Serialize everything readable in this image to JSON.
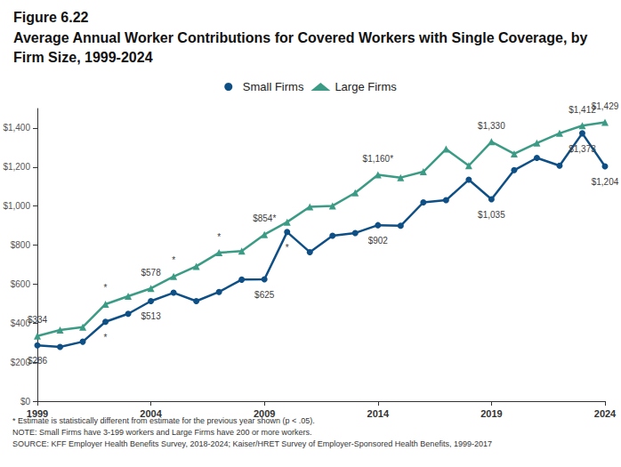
{
  "chart_data": {
    "type": "line",
    "title": "Figure 6.22",
    "subtitle": "Average Annual Worker Contributions for Covered Workers with Single Coverage, by Firm Size, 1999-2024",
    "x": [
      1999,
      2000,
      2001,
      2002,
      2003,
      2004,
      2005,
      2006,
      2007,
      2008,
      2009,
      2010,
      2011,
      2012,
      2013,
      2014,
      2015,
      2016,
      2017,
      2018,
      2019,
      2020,
      2021,
      2022,
      2023,
      2024
    ],
    "series": [
      {
        "name": "Small Firms",
        "color": "#0e4f86",
        "marker": "circle",
        "values": [
          286,
          278,
          305,
          407,
          448,
          513,
          556,
          513,
          560,
          623,
          625,
          867,
          764,
          848,
          862,
          902,
          899,
          1019,
          1030,
          1135,
          1035,
          1184,
          1247,
          1207,
          1373,
          1204
        ],
        "value_labels": [
          "$286",
          null,
          null,
          "*",
          null,
          "$513",
          null,
          null,
          null,
          null,
          "$625",
          "*",
          null,
          null,
          null,
          "$902",
          null,
          null,
          null,
          null,
          "$1,035",
          null,
          null,
          null,
          "$1,373",
          "$1,204"
        ]
      },
      {
        "name": "Large Firms",
        "color": "#3b9b85",
        "marker": "triangle",
        "values": [
          334,
          365,
          380,
          497,
          538,
          578,
          639,
          691,
          761,
          769,
          854,
          918,
          996,
          1001,
          1068,
          1160,
          1146,
          1176,
          1292,
          1207,
          1330,
          1268,
          1323,
          1373,
          1412,
          1429
        ],
        "value_labels": [
          "$334",
          null,
          null,
          "*",
          null,
          "$578",
          "*",
          null,
          "*",
          null,
          "$854*",
          null,
          null,
          null,
          null,
          "$1,160*",
          null,
          null,
          null,
          null,
          "$1,330",
          null,
          null,
          null,
          "$1,412",
          "$1,429"
        ]
      }
    ],
    "xlim": [
      1999,
      2024
    ],
    "xticks": [
      1999,
      2004,
      2009,
      2014,
      2019,
      2024
    ],
    "ylim": [
      0,
      1500
    ],
    "yticks": [
      {
        "value": 0,
        "label": "$0"
      },
      {
        "value": 200,
        "label": "$200"
      },
      {
        "value": 400,
        "label": "$400"
      },
      {
        "value": 600,
        "label": "$600"
      },
      {
        "value": 800,
        "label": "$800"
      },
      {
        "value": 1000,
        "label": "$1,000"
      },
      {
        "value": 1200,
        "label": "$1,200"
      },
      {
        "value": 1400,
        "label": "$1,400"
      }
    ],
    "grid": false,
    "legend": "top",
    "notes": [
      "* Estimate is statistically different from estimate for the previous year shown (p < .05).",
      "NOTE: Small Firms have 3-199 workers and Large Firms have 200 or more workers.",
      "SOURCE: KFF Employer Health Benefits Survey, 2018-2024; Kaiser/HRET Survey of Employer-Sponsored Health Benefits, 1999-2017"
    ]
  }
}
